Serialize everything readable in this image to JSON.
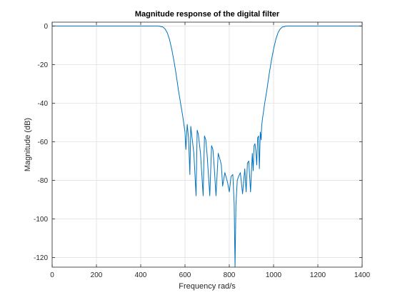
{
  "chart_data": {
    "type": "line",
    "title": "Magnitude response of the digital filter",
    "xlabel": "Frequency rad/s",
    "ylabel": "Magnitude (dB)",
    "xlim": [
      0,
      1400
    ],
    "ylim": [
      -125,
      2
    ],
    "xticks": [
      0,
      200,
      400,
      600,
      800,
      1000,
      1200,
      1400
    ],
    "yticks": [
      0,
      -20,
      -40,
      -60,
      -80,
      -100,
      -120
    ],
    "grid": true,
    "line_color": "#0072BD",
    "series": [
      {
        "x": [
          0,
          480,
          500,
          510,
          520,
          530,
          540,
          550,
          560,
          570,
          580,
          590,
          595,
          600,
          604,
          610,
          616,
          622,
          626,
          630,
          640,
          650,
          655,
          660,
          670,
          682,
          688,
          694,
          700,
          712,
          720,
          726,
          732,
          740,
          750,
          760,
          764,
          770,
          780,
          792,
          800,
          808,
          816,
          822,
          826,
          830,
          836,
          842,
          850,
          860,
          870,
          876,
          882,
          888,
          896,
          904,
          908,
          912,
          916,
          920,
          924,
          928,
          932,
          936,
          940,
          944,
          946,
          950,
          960,
          970,
          980,
          990,
          1000,
          1010,
          1020,
          1030,
          1040,
          1060,
          1100,
          1400
        ],
        "y": [
          0,
          0,
          -0.5,
          -1.5,
          -3.5,
          -7,
          -12,
          -18,
          -25,
          -33,
          -40,
          -47,
          -51,
          -55,
          -64,
          -51,
          -58,
          -77,
          -52,
          -56,
          -66,
          -88,
          -54,
          -56,
          -66,
          -88,
          -57,
          -59,
          -67,
          -88,
          -62,
          -64,
          -73,
          -88,
          -66,
          -70,
          -72,
          -83,
          -76,
          -81,
          -86,
          -78,
          -77,
          -92,
          -125,
          -93,
          -80,
          -78,
          -76,
          -87,
          -74,
          -86,
          -71,
          -70,
          -86,
          -66,
          -75,
          -62,
          -61,
          -65,
          -72,
          -58,
          -57,
          -74,
          -55,
          -59,
          -52,
          -48,
          -40,
          -33,
          -25,
          -18,
          -12,
          -7,
          -3.5,
          -1.5,
          -0.5,
          0,
          0,
          0
        ]
      }
    ]
  }
}
